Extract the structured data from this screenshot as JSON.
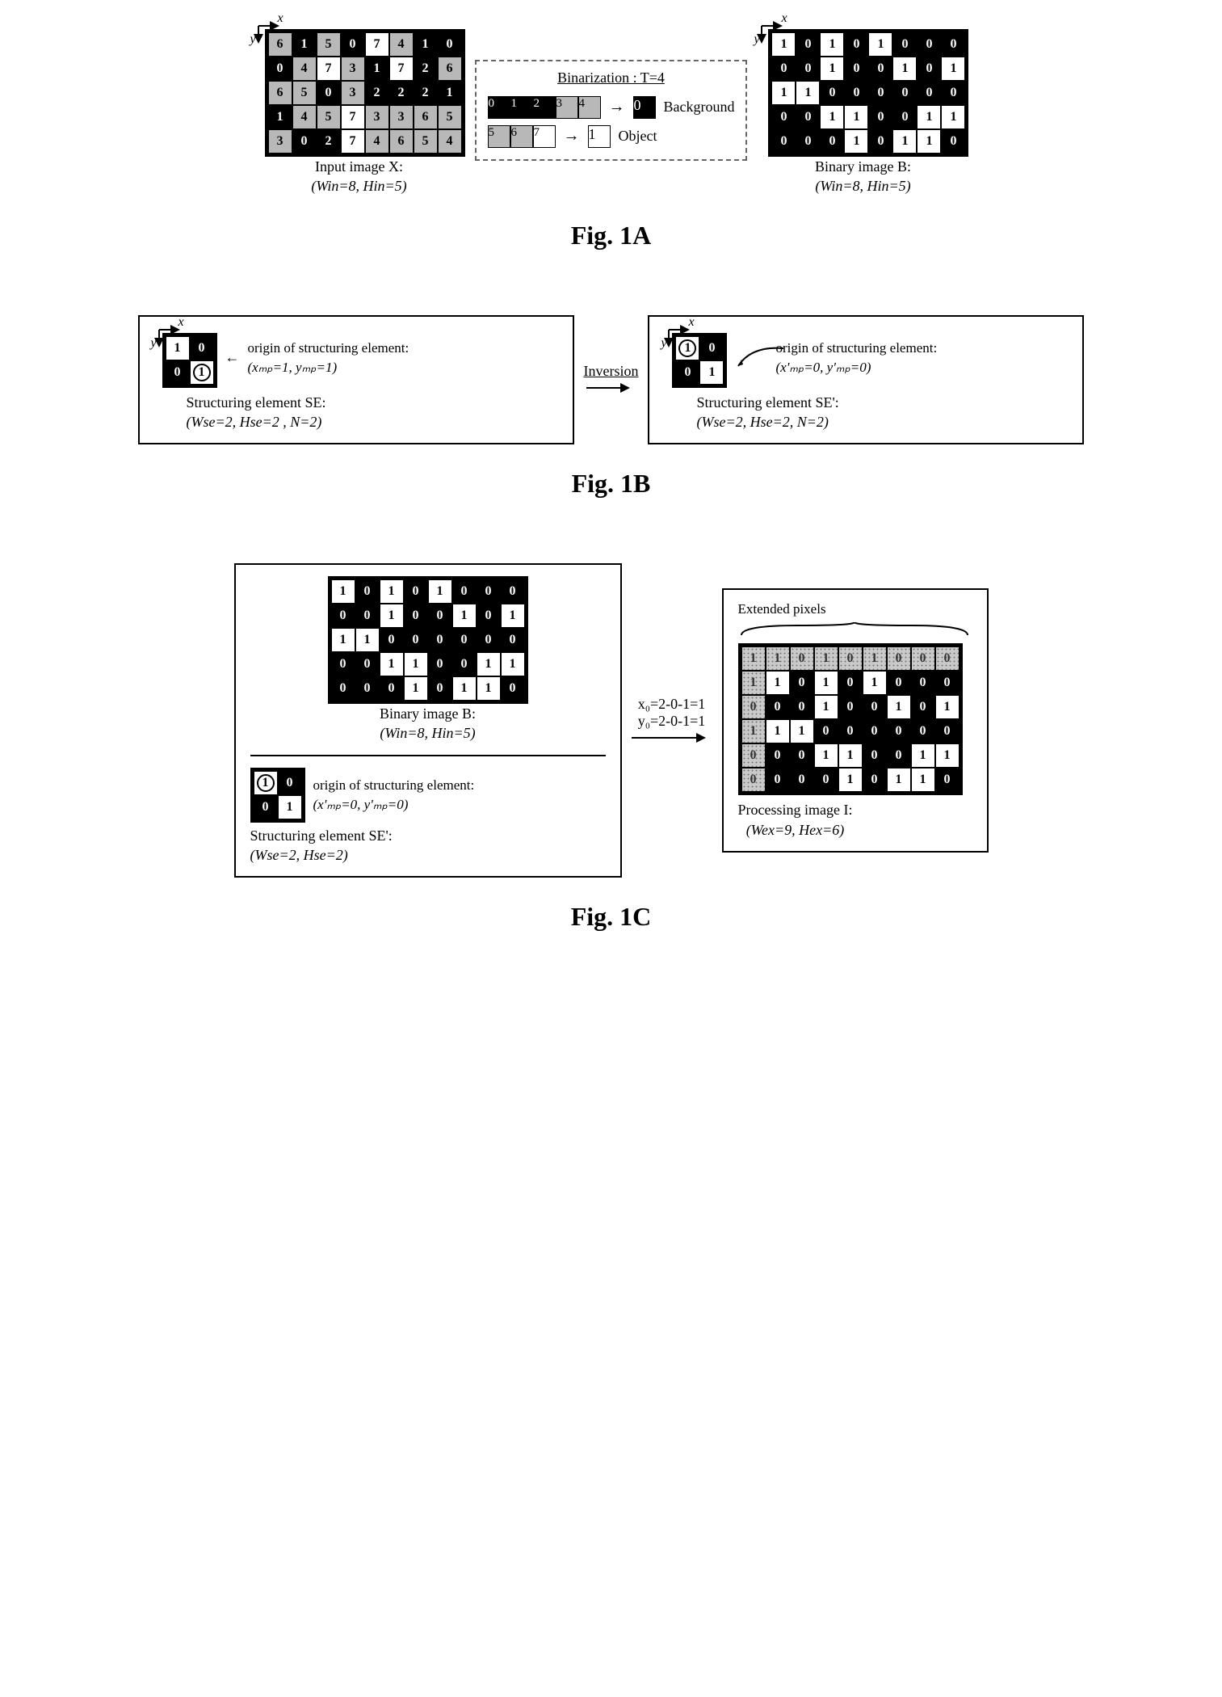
{
  "colors": {
    "bg_black": "#000000",
    "bg_white": "#ffffff",
    "bg_gray": "#b8b8b8",
    "bg_dotted": "#c9c9c9",
    "border": "#000000",
    "dashed": "#666666"
  },
  "cell_classes": {
    "w": "cw",
    "b": "cb",
    "g": "cg",
    "d": "cd"
  },
  "fig1a": {
    "label": "Fig. 1A",
    "input": {
      "axis_x": "x",
      "axis_y": "y",
      "rows": [
        [
          {
            "v": "6",
            "c": "g"
          },
          {
            "v": "1",
            "c": "b"
          },
          {
            "v": "5",
            "c": "g"
          },
          {
            "v": "0",
            "c": "b"
          },
          {
            "v": "7",
            "c": "w"
          },
          {
            "v": "4",
            "c": "g"
          },
          {
            "v": "1",
            "c": "b"
          },
          {
            "v": "0",
            "c": "b"
          }
        ],
        [
          {
            "v": "0",
            "c": "b"
          },
          {
            "v": "4",
            "c": "g"
          },
          {
            "v": "7",
            "c": "w"
          },
          {
            "v": "3",
            "c": "g"
          },
          {
            "v": "1",
            "c": "b"
          },
          {
            "v": "7",
            "c": "w"
          },
          {
            "v": "2",
            "c": "b"
          },
          {
            "v": "6",
            "c": "g"
          }
        ],
        [
          {
            "v": "6",
            "c": "g"
          },
          {
            "v": "5",
            "c": "g"
          },
          {
            "v": "0",
            "c": "b"
          },
          {
            "v": "3",
            "c": "g"
          },
          {
            "v": "2",
            "c": "b"
          },
          {
            "v": "2",
            "c": "b"
          },
          {
            "v": "2",
            "c": "b"
          },
          {
            "v": "1",
            "c": "b"
          }
        ],
        [
          {
            "v": "1",
            "c": "b"
          },
          {
            "v": "4",
            "c": "g"
          },
          {
            "v": "5",
            "c": "g"
          },
          {
            "v": "7",
            "c": "w"
          },
          {
            "v": "3",
            "c": "g"
          },
          {
            "v": "3",
            "c": "g"
          },
          {
            "v": "6",
            "c": "g"
          },
          {
            "v": "5",
            "c": "g"
          }
        ],
        [
          {
            "v": "3",
            "c": "g"
          },
          {
            "v": "0",
            "c": "b"
          },
          {
            "v": "2",
            "c": "b"
          },
          {
            "v": "7",
            "c": "w"
          },
          {
            "v": "4",
            "c": "g"
          },
          {
            "v": "6",
            "c": "g"
          },
          {
            "v": "5",
            "c": "g"
          },
          {
            "v": "4",
            "c": "g"
          }
        ]
      ],
      "caption_line1": "Input image X:",
      "caption_line2": "(Win=8, Hin=5)"
    },
    "binarization": {
      "title": "Binarization : T=4",
      "bg_cells": [
        {
          "v": "0",
          "c": "b"
        },
        {
          "v": "1",
          "c": "b"
        },
        {
          "v": "2",
          "c": "b"
        },
        {
          "v": "3",
          "c": "g"
        },
        {
          "v": "4",
          "c": "g"
        }
      ],
      "bg_out": {
        "v": "0",
        "c": "b"
      },
      "bg_label": "Background",
      "obj_cells": [
        {
          "v": "5",
          "c": "g"
        },
        {
          "v": "6",
          "c": "g"
        },
        {
          "v": "7",
          "c": "w"
        }
      ],
      "obj_out": {
        "v": "1",
        "c": "w"
      },
      "obj_label": "Object"
    },
    "binary": {
      "axis_x": "x",
      "axis_y": "y",
      "rows": [
        [
          {
            "v": "1",
            "c": "w"
          },
          {
            "v": "0",
            "c": "b"
          },
          {
            "v": "1",
            "c": "w"
          },
          {
            "v": "0",
            "c": "b"
          },
          {
            "v": "1",
            "c": "w"
          },
          {
            "v": "0",
            "c": "b"
          },
          {
            "v": "0",
            "c": "b"
          },
          {
            "v": "0",
            "c": "b"
          }
        ],
        [
          {
            "v": "0",
            "c": "b"
          },
          {
            "v": "0",
            "c": "b"
          },
          {
            "v": "1",
            "c": "w"
          },
          {
            "v": "0",
            "c": "b"
          },
          {
            "v": "0",
            "c": "b"
          },
          {
            "v": "1",
            "c": "w"
          },
          {
            "v": "0",
            "c": "b"
          },
          {
            "v": "1",
            "c": "w"
          }
        ],
        [
          {
            "v": "1",
            "c": "w"
          },
          {
            "v": "1",
            "c": "w"
          },
          {
            "v": "0",
            "c": "b"
          },
          {
            "v": "0",
            "c": "b"
          },
          {
            "v": "0",
            "c": "b"
          },
          {
            "v": "0",
            "c": "b"
          },
          {
            "v": "0",
            "c": "b"
          },
          {
            "v": "0",
            "c": "b"
          }
        ],
        [
          {
            "v": "0",
            "c": "b"
          },
          {
            "v": "0",
            "c": "b"
          },
          {
            "v": "1",
            "c": "w"
          },
          {
            "v": "1",
            "c": "w"
          },
          {
            "v": "0",
            "c": "b"
          },
          {
            "v": "0",
            "c": "b"
          },
          {
            "v": "1",
            "c": "w"
          },
          {
            "v": "1",
            "c": "w"
          }
        ],
        [
          {
            "v": "0",
            "c": "b"
          },
          {
            "v": "0",
            "c": "b"
          },
          {
            "v": "0",
            "c": "b"
          },
          {
            "v": "1",
            "c": "w"
          },
          {
            "v": "0",
            "c": "b"
          },
          {
            "v": "1",
            "c": "w"
          },
          {
            "v": "1",
            "c": "w"
          },
          {
            "v": "0",
            "c": "b"
          }
        ]
      ],
      "caption_line1": "Binary image B:",
      "caption_line2": "(Win=8, Hin=5)"
    }
  },
  "fig1b": {
    "label": "Fig. 1B",
    "mid_label": "Inversion",
    "left": {
      "axis_x": "x",
      "axis_y": "y",
      "se_rows": [
        [
          {
            "v": "1",
            "c": "w"
          },
          {
            "v": "0",
            "c": "b"
          }
        ],
        [
          {
            "v": "0",
            "c": "b"
          },
          {
            "v": "1",
            "c": "w",
            "origin": true
          }
        ]
      ],
      "origin_label": "origin of structuring element:",
      "origin_coords": "(xₘₚ=1, yₘₚ=1)",
      "se_caption1": "Structuring element SE:",
      "se_caption2": "(Wse=2, Hse=2 , N=2)"
    },
    "right": {
      "axis_x": "x",
      "axis_y": "y",
      "se_rows": [
        [
          {
            "v": "1",
            "c": "w",
            "origin": true
          },
          {
            "v": "0",
            "c": "b"
          }
        ],
        [
          {
            "v": "0",
            "c": "b"
          },
          {
            "v": "1",
            "c": "w"
          }
        ]
      ],
      "origin_label": "origin of structuring element:",
      "origin_coords": "(x'ₘₚ=0, y'ₘₚ=0)",
      "se_caption1": "Structuring element SE':",
      "se_caption2": "(Wse=2, Hse=2, N=2)"
    }
  },
  "fig1c": {
    "label": "Fig. 1C",
    "left_top": {
      "rows": [
        [
          {
            "v": "1",
            "c": "w"
          },
          {
            "v": "0",
            "c": "b"
          },
          {
            "v": "1",
            "c": "w"
          },
          {
            "v": "0",
            "c": "b"
          },
          {
            "v": "1",
            "c": "w"
          },
          {
            "v": "0",
            "c": "b"
          },
          {
            "v": "0",
            "c": "b"
          },
          {
            "v": "0",
            "c": "b"
          }
        ],
        [
          {
            "v": "0",
            "c": "b"
          },
          {
            "v": "0",
            "c": "b"
          },
          {
            "v": "1",
            "c": "w"
          },
          {
            "v": "0",
            "c": "b"
          },
          {
            "v": "0",
            "c": "b"
          },
          {
            "v": "1",
            "c": "w"
          },
          {
            "v": "0",
            "c": "b"
          },
          {
            "v": "1",
            "c": "w"
          }
        ],
        [
          {
            "v": "1",
            "c": "w"
          },
          {
            "v": "1",
            "c": "w"
          },
          {
            "v": "0",
            "c": "b"
          },
          {
            "v": "0",
            "c": "b"
          },
          {
            "v": "0",
            "c": "b"
          },
          {
            "v": "0",
            "c": "b"
          },
          {
            "v": "0",
            "c": "b"
          },
          {
            "v": "0",
            "c": "b"
          }
        ],
        [
          {
            "v": "0",
            "c": "b"
          },
          {
            "v": "0",
            "c": "b"
          },
          {
            "v": "1",
            "c": "w"
          },
          {
            "v": "1",
            "c": "w"
          },
          {
            "v": "0",
            "c": "b"
          },
          {
            "v": "0",
            "c": "b"
          },
          {
            "v": "1",
            "c": "w"
          },
          {
            "v": "1",
            "c": "w"
          }
        ],
        [
          {
            "v": "0",
            "c": "b"
          },
          {
            "v": "0",
            "c": "b"
          },
          {
            "v": "0",
            "c": "b"
          },
          {
            "v": "1",
            "c": "w"
          },
          {
            "v": "0",
            "c": "b"
          },
          {
            "v": "1",
            "c": "w"
          },
          {
            "v": "1",
            "c": "w"
          },
          {
            "v": "0",
            "c": "b"
          }
        ]
      ],
      "caption1": "Binary image B:",
      "caption2": "(Win=8, Hin=5)"
    },
    "left_bot": {
      "se_rows": [
        [
          {
            "v": "1",
            "c": "w",
            "origin": true
          },
          {
            "v": "0",
            "c": "b"
          }
        ],
        [
          {
            "v": "0",
            "c": "b"
          },
          {
            "v": "1",
            "c": "w"
          }
        ]
      ],
      "origin_label": "origin of structuring element:",
      "origin_coords": "(x'ₘₚ=0, y'ₘₚ=0)",
      "se_caption1": "Structuring element SE':",
      "se_caption2": "(Wse=2, Hse=2)"
    },
    "mid": {
      "line1": "x₀=2-0-1=1",
      "line2": "y₀=2-0-1=1"
    },
    "right": {
      "ext_label": "Extended pixels",
      "rows": [
        [
          {
            "v": "1",
            "c": "d"
          },
          {
            "v": "1",
            "c": "d"
          },
          {
            "v": "0",
            "c": "d"
          },
          {
            "v": "1",
            "c": "d"
          },
          {
            "v": "0",
            "c": "d"
          },
          {
            "v": "1",
            "c": "d"
          },
          {
            "v": "0",
            "c": "d"
          },
          {
            "v": "0",
            "c": "d"
          },
          {
            "v": "0",
            "c": "d"
          }
        ],
        [
          {
            "v": "1",
            "c": "d"
          },
          {
            "v": "1",
            "c": "w"
          },
          {
            "v": "0",
            "c": "b"
          },
          {
            "v": "1",
            "c": "w"
          },
          {
            "v": "0",
            "c": "b"
          },
          {
            "v": "1",
            "c": "w"
          },
          {
            "v": "0",
            "c": "b"
          },
          {
            "v": "0",
            "c": "b"
          },
          {
            "v": "0",
            "c": "b"
          }
        ],
        [
          {
            "v": "0",
            "c": "d"
          },
          {
            "v": "0",
            "c": "b"
          },
          {
            "v": "0",
            "c": "b"
          },
          {
            "v": "1",
            "c": "w"
          },
          {
            "v": "0",
            "c": "b"
          },
          {
            "v": "0",
            "c": "b"
          },
          {
            "v": "1",
            "c": "w"
          },
          {
            "v": "0",
            "c": "b"
          },
          {
            "v": "1",
            "c": "w"
          }
        ],
        [
          {
            "v": "1",
            "c": "d"
          },
          {
            "v": "1",
            "c": "w"
          },
          {
            "v": "1",
            "c": "w"
          },
          {
            "v": "0",
            "c": "b"
          },
          {
            "v": "0",
            "c": "b"
          },
          {
            "v": "0",
            "c": "b"
          },
          {
            "v": "0",
            "c": "b"
          },
          {
            "v": "0",
            "c": "b"
          },
          {
            "v": "0",
            "c": "b"
          }
        ],
        [
          {
            "v": "0",
            "c": "d"
          },
          {
            "v": "0",
            "c": "b"
          },
          {
            "v": "0",
            "c": "b"
          },
          {
            "v": "1",
            "c": "w"
          },
          {
            "v": "1",
            "c": "w"
          },
          {
            "v": "0",
            "c": "b"
          },
          {
            "v": "0",
            "c": "b"
          },
          {
            "v": "1",
            "c": "w"
          },
          {
            "v": "1",
            "c": "w"
          }
        ],
        [
          {
            "v": "0",
            "c": "d"
          },
          {
            "v": "0",
            "c": "b"
          },
          {
            "v": "0",
            "c": "b"
          },
          {
            "v": "0",
            "c": "b"
          },
          {
            "v": "1",
            "c": "w"
          },
          {
            "v": "0",
            "c": "b"
          },
          {
            "v": "1",
            "c": "w"
          },
          {
            "v": "1",
            "c": "w"
          },
          {
            "v": "0",
            "c": "b"
          }
        ]
      ],
      "caption1": "Processing image I:",
      "caption2": "(Wex=9, Hex=6)"
    }
  }
}
